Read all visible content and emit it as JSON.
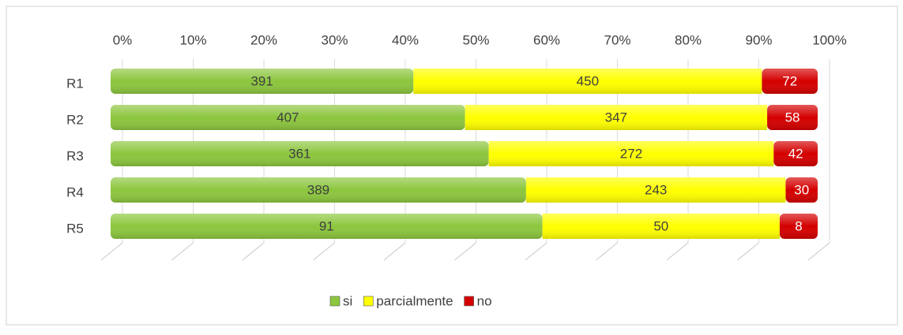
{
  "chart_data": {
    "type": "bar",
    "orientation": "horizontal",
    "stacking": "percent",
    "categories": [
      "R1",
      "R2",
      "R3",
      "R4",
      "R5"
    ],
    "series": [
      {
        "name": "si",
        "color": "#8cc63e",
        "values": [
          391,
          407,
          361,
          389,
          91
        ]
      },
      {
        "name": "parcialmente",
        "color": "#ffff00",
        "values": [
          450,
          347,
          272,
          243,
          50
        ]
      },
      {
        "name": "no",
        "color": "#d40000",
        "values": [
          72,
          58,
          42,
          30,
          8
        ]
      }
    ],
    "xlim": [
      0,
      100
    ],
    "xticks": [
      {
        "value": 0,
        "label": "0%"
      },
      {
        "value": 10,
        "label": "10%"
      },
      {
        "value": 20,
        "label": "20%"
      },
      {
        "value": 30,
        "label": "30%"
      },
      {
        "value": 40,
        "label": "40%"
      },
      {
        "value": 50,
        "label": "50%"
      },
      {
        "value": 60,
        "label": "60%"
      },
      {
        "value": 70,
        "label": "70%"
      },
      {
        "value": 80,
        "label": "80%"
      },
      {
        "value": 90,
        "label": "90%"
      },
      {
        "value": 100,
        "label": "100%"
      }
    ],
    "grid": true,
    "legend": "bottom"
  }
}
